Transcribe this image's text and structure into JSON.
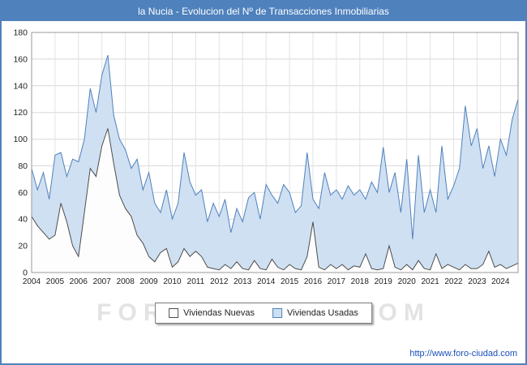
{
  "title": "la Nucia - Evolucion del Nº de Transacciones Inmobiliarias",
  "watermark": "FORO-CIUDAD.COM",
  "footer": {
    "url": "http://www.foro-ciudad.com"
  },
  "colors": {
    "frame": "#4f81bd",
    "title_bg": "#4f81bd",
    "title_text": "#ffffff",
    "grid": "#d8d8d8",
    "plot_border": "#9a9a9a",
    "url_text": "#1a4fba",
    "watermark_text": "#e3e3e3"
  },
  "legend": [
    {
      "label": "Viviendas Nuevas",
      "fill": "#fdfdfd",
      "stroke": "#4d4d4d"
    },
    {
      "label": "Viviendas Usadas",
      "fill": "#cfe0f2",
      "stroke": "#4f81bd"
    }
  ],
  "chart_data": {
    "type": "area",
    "title": "la Nucia - Evolucion del Nº de Transacciones Inmobiliarias",
    "xlabel": "",
    "ylabel": "",
    "ylim": [
      0,
      180
    ],
    "ytick_step": 20,
    "grid": true,
    "legend_position": "bottom",
    "x_years": [
      2004,
      2005,
      2006,
      2007,
      2008,
      2009,
      2010,
      2011,
      2012,
      2013,
      2014,
      2015,
      2016,
      2017,
      2018,
      2019,
      2020,
      2021,
      2022,
      2023,
      2024
    ],
    "points_per_year": 4,
    "series": [
      {
        "name": "Viviendas Nuevas",
        "fill": "#fdfdfd",
        "stroke": "#4d4d4d",
        "values": [
          42,
          35,
          30,
          25,
          28,
          52,
          38,
          20,
          12,
          45,
          78,
          72,
          95,
          108,
          82,
          58,
          48,
          42,
          28,
          22,
          12,
          8,
          15,
          18,
          4,
          8,
          18,
          12,
          16,
          12,
          4,
          3,
          2,
          6,
          3,
          8,
          3,
          2,
          9,
          3,
          2,
          10,
          4,
          2,
          6,
          3,
          2,
          12,
          38,
          4,
          2,
          6,
          3,
          6,
          2,
          5,
          4,
          14,
          3,
          2,
          3,
          20,
          4,
          2,
          6,
          2,
          9,
          3,
          2,
          14,
          3,
          6,
          4,
          2,
          6,
          3,
          3,
          6,
          16,
          4,
          6,
          3,
          5,
          7
        ]
      },
      {
        "name": "Viviendas Usadas",
        "fill": "#cfe0f2",
        "stroke": "#4f81bd",
        "values": [
          78,
          62,
          75,
          55,
          88,
          90,
          72,
          85,
          83,
          100,
          138,
          120,
          148,
          163,
          118,
          100,
          92,
          78,
          85,
          62,
          75,
          52,
          45,
          62,
          40,
          52,
          90,
          68,
          58,
          62,
          38,
          52,
          42,
          55,
          30,
          48,
          38,
          56,
          60,
          40,
          66,
          58,
          52,
          66,
          60,
          45,
          50,
          90,
          55,
          48,
          75,
          58,
          62,
          55,
          65,
          58,
          62,
          55,
          68,
          60,
          94,
          60,
          75,
          45,
          85,
          25,
          88,
          45,
          62,
          45,
          95,
          55,
          65,
          78,
          125,
          95,
          108,
          78,
          95,
          72,
          100,
          88,
          115,
          130
        ]
      }
    ]
  }
}
